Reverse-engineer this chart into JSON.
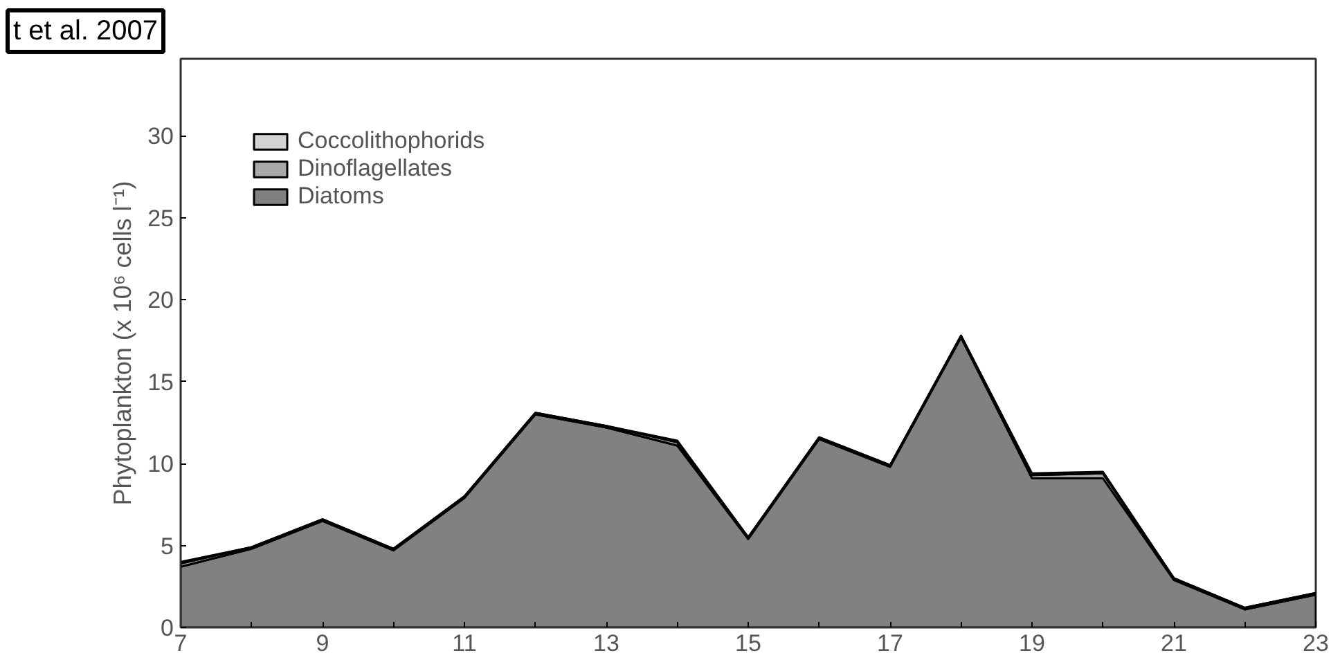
{
  "chart_data": {
    "type": "area",
    "stacked": true,
    "ylabel": "Phytoplankton (x 10⁶ cells l⁻¹)",
    "annotations": [
      "t et al. 2007"
    ],
    "x": [
      7,
      8,
      9,
      10,
      11,
      12,
      13,
      14,
      15,
      16,
      17,
      18,
      19,
      20,
      21,
      22,
      23
    ],
    "series": [
      {
        "name": "Diatoms",
        "color": "#808183",
        "values": [
          3.7,
          4.8,
          6.5,
          4.7,
          7.9,
          13.0,
          12.2,
          11.1,
          5.4,
          11.5,
          9.8,
          17.7,
          9.1,
          9.1,
          2.9,
          1.1,
          2.0
        ]
      },
      {
        "name": "Dinoflagellates",
        "color": "#a9a9a9",
        "values": [
          0.2,
          0.1,
          0.1,
          0.1,
          0.1,
          0.1,
          0.1,
          0.2,
          0.1,
          0.1,
          0.1,
          0.1,
          0.2,
          0.3,
          0.1,
          0.1,
          0.1
        ]
      },
      {
        "name": "Coccolithophorids",
        "color": "#d3d3d3",
        "values": [
          0.1,
          0,
          0,
          0,
          0,
          0,
          0,
          0.1,
          0,
          0,
          0,
          0,
          0.1,
          0.1,
          0,
          0,
          0
        ]
      }
    ],
    "xlim": [
      7,
      23
    ],
    "ylim": [
      0,
      34.7
    ],
    "xticks": [
      7,
      {
        "value": 8,
        "label": null
      },
      9,
      {
        "value": 10,
        "label": null
      },
      11,
      {
        "value": 12,
        "label": null
      },
      13,
      {
        "value": 14,
        "label": null
      },
      15,
      {
        "value": 16,
        "label": null
      },
      17,
      {
        "value": 18,
        "label": null
      },
      19,
      {
        "value": 20,
        "label": null
      },
      21,
      {
        "value": 22,
        "label": null
      },
      23
    ],
    "yticks": [
      0,
      5,
      10,
      15,
      20,
      25,
      30
    ],
    "grid": false,
    "legend": "top left"
  }
}
